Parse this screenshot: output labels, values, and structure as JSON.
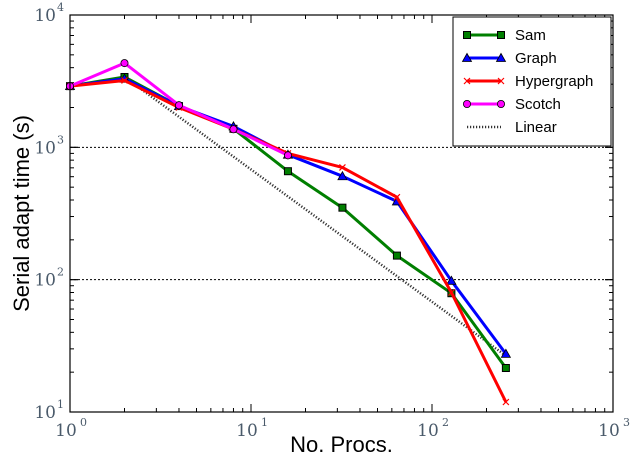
{
  "chart_data": {
    "type": "line",
    "title": "",
    "xlabel": "No. Procs.",
    "ylabel": "Serial adapt time (s)",
    "xscale": "log",
    "yscale": "log",
    "xlim": [
      1,
      1000
    ],
    "ylim": [
      10,
      10000
    ],
    "x_ticks": [
      {
        "base": "10",
        "exp": "0",
        "value": 1
      },
      {
        "base": "10",
        "exp": "1",
        "value": 10
      },
      {
        "base": "10",
        "exp": "2",
        "value": 100
      },
      {
        "base": "10",
        "exp": "3",
        "value": 1000
      }
    ],
    "y_ticks": [
      {
        "base": "10",
        "exp": "1",
        "value": 10
      },
      {
        "base": "10",
        "exp": "2",
        "value": 100
      },
      {
        "base": "10",
        "exp": "3",
        "value": 1000
      },
      {
        "base": "10",
        "exp": "4",
        "value": 10000
      }
    ],
    "grid": "horizontal dotted at major y ticks",
    "legend_position": "top-right",
    "series": [
      {
        "name": "Sam",
        "color": "#007f00",
        "marker": "square",
        "dash": "solid",
        "x": [
          1,
          2,
          4,
          8,
          16,
          32,
          64,
          128,
          256
        ],
        "values": [
          2900,
          3400,
          2050,
          1380,
          660,
          350,
          152,
          79,
          21.5
        ]
      },
      {
        "name": "Graph",
        "color": "#0000ff",
        "marker": "triangle",
        "dash": "solid",
        "x": [
          1,
          2,
          4,
          8,
          16,
          32,
          64,
          128,
          256
        ],
        "values": [
          2900,
          3300,
          2050,
          1440,
          880,
          605,
          390,
          98,
          27.5
        ]
      },
      {
        "name": "Hypergraph",
        "color": "#ff0000",
        "marker": "x",
        "dash": "solid",
        "x": [
          1,
          2,
          4,
          8,
          16,
          32,
          64,
          128,
          256
        ],
        "values": [
          2900,
          3200,
          2000,
          1370,
          900,
          705,
          420,
          80,
          11.9
        ]
      },
      {
        "name": "Scotch",
        "color": "#ff00ff",
        "marker": "circle",
        "dash": "solid",
        "x": [
          1,
          2,
          4,
          8,
          16
        ],
        "values": [
          2900,
          4330,
          2080,
          1370,
          870
        ]
      },
      {
        "name": "Linear",
        "color": "#000000",
        "marker": "none",
        "dash": "dotted",
        "x": [
          2,
          256
        ],
        "values": [
          3400,
          26.6
        ]
      }
    ]
  }
}
